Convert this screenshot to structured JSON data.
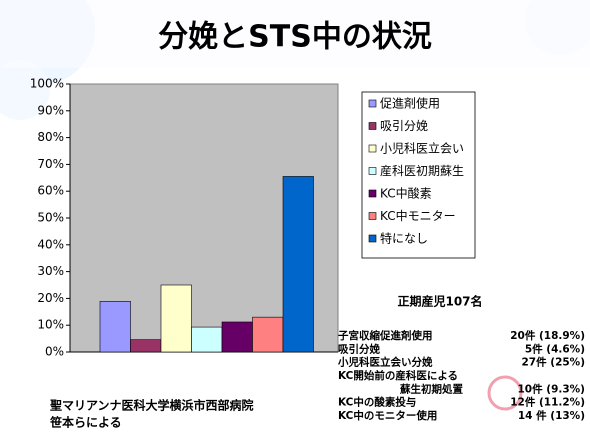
{
  "chart_data": {
    "type": "bar",
    "title": "分娩とSTS中の状況",
    "categories": [
      null
    ],
    "series": [
      {
        "name": "促進剤使用",
        "color": "#9999ff",
        "values": [
          18.9
        ]
      },
      {
        "name": "吸引分娩",
        "color": "#993366",
        "values": [
          4.6
        ]
      },
      {
        "name": "小児科医立会い",
        "color": "#ffffcc",
        "values": [
          25
        ]
      },
      {
        "name": "産科医初期蘇生",
        "color": "#ccffff",
        "values": [
          9.3
        ]
      },
      {
        "name": "KC中酸素",
        "color": "#660066",
        "values": [
          11.2
        ]
      },
      {
        "name": "KC中モニター",
        "color": "#ff8080",
        "values": [
          13
        ]
      },
      {
        "name": "特になし",
        "color": "#0066cc",
        "values": [
          65.5
        ]
      }
    ],
    "ylim": [
      0,
      100
    ],
    "yticks": [
      {
        "value": 0,
        "label": "0%"
      },
      {
        "value": 10,
        "label": "10%"
      },
      {
        "value": 20,
        "label": "20%"
      },
      {
        "value": 30,
        "label": "30%"
      },
      {
        "value": 40,
        "label": "40%"
      },
      {
        "value": 50,
        "label": "50%"
      },
      {
        "value": 60,
        "label": "60%"
      },
      {
        "value": 70,
        "label": "70%"
      },
      {
        "value": 80,
        "label": "80%"
      },
      {
        "value": 90,
        "label": "90%"
      },
      {
        "value": 100,
        "label": "100%"
      }
    ],
    "grid": false,
    "legend": "right",
    "plot_color": "#c0c0c0",
    "summary_title": "正期産児107名",
    "summary": [
      {
        "label": [
          "子宮収縮促進剤使用"
        ],
        "value": "20件 (18.9%)"
      },
      {
        "label": [
          "吸引分娩"
        ],
        "value": "5件 (4.6%)"
      },
      {
        "label": [
          "小児科医立会い分娩"
        ],
        "value": "27件 (25%)"
      },
      {
        "label": [
          "KC開始前の産科医による",
          "蘇生初期処置"
        ],
        "value": "10件 (9.3%)"
      },
      {
        "label": [
          "KC中の酸素投与"
        ],
        "value": "12件 (11.2%)"
      },
      {
        "label": [
          "KC中のモニター使用"
        ],
        "value": "14 件 (13%)"
      }
    ],
    "source": [
      "聖マリアンナ医科大学横浜市西部病院",
      "笹本らによる"
    ]
  }
}
